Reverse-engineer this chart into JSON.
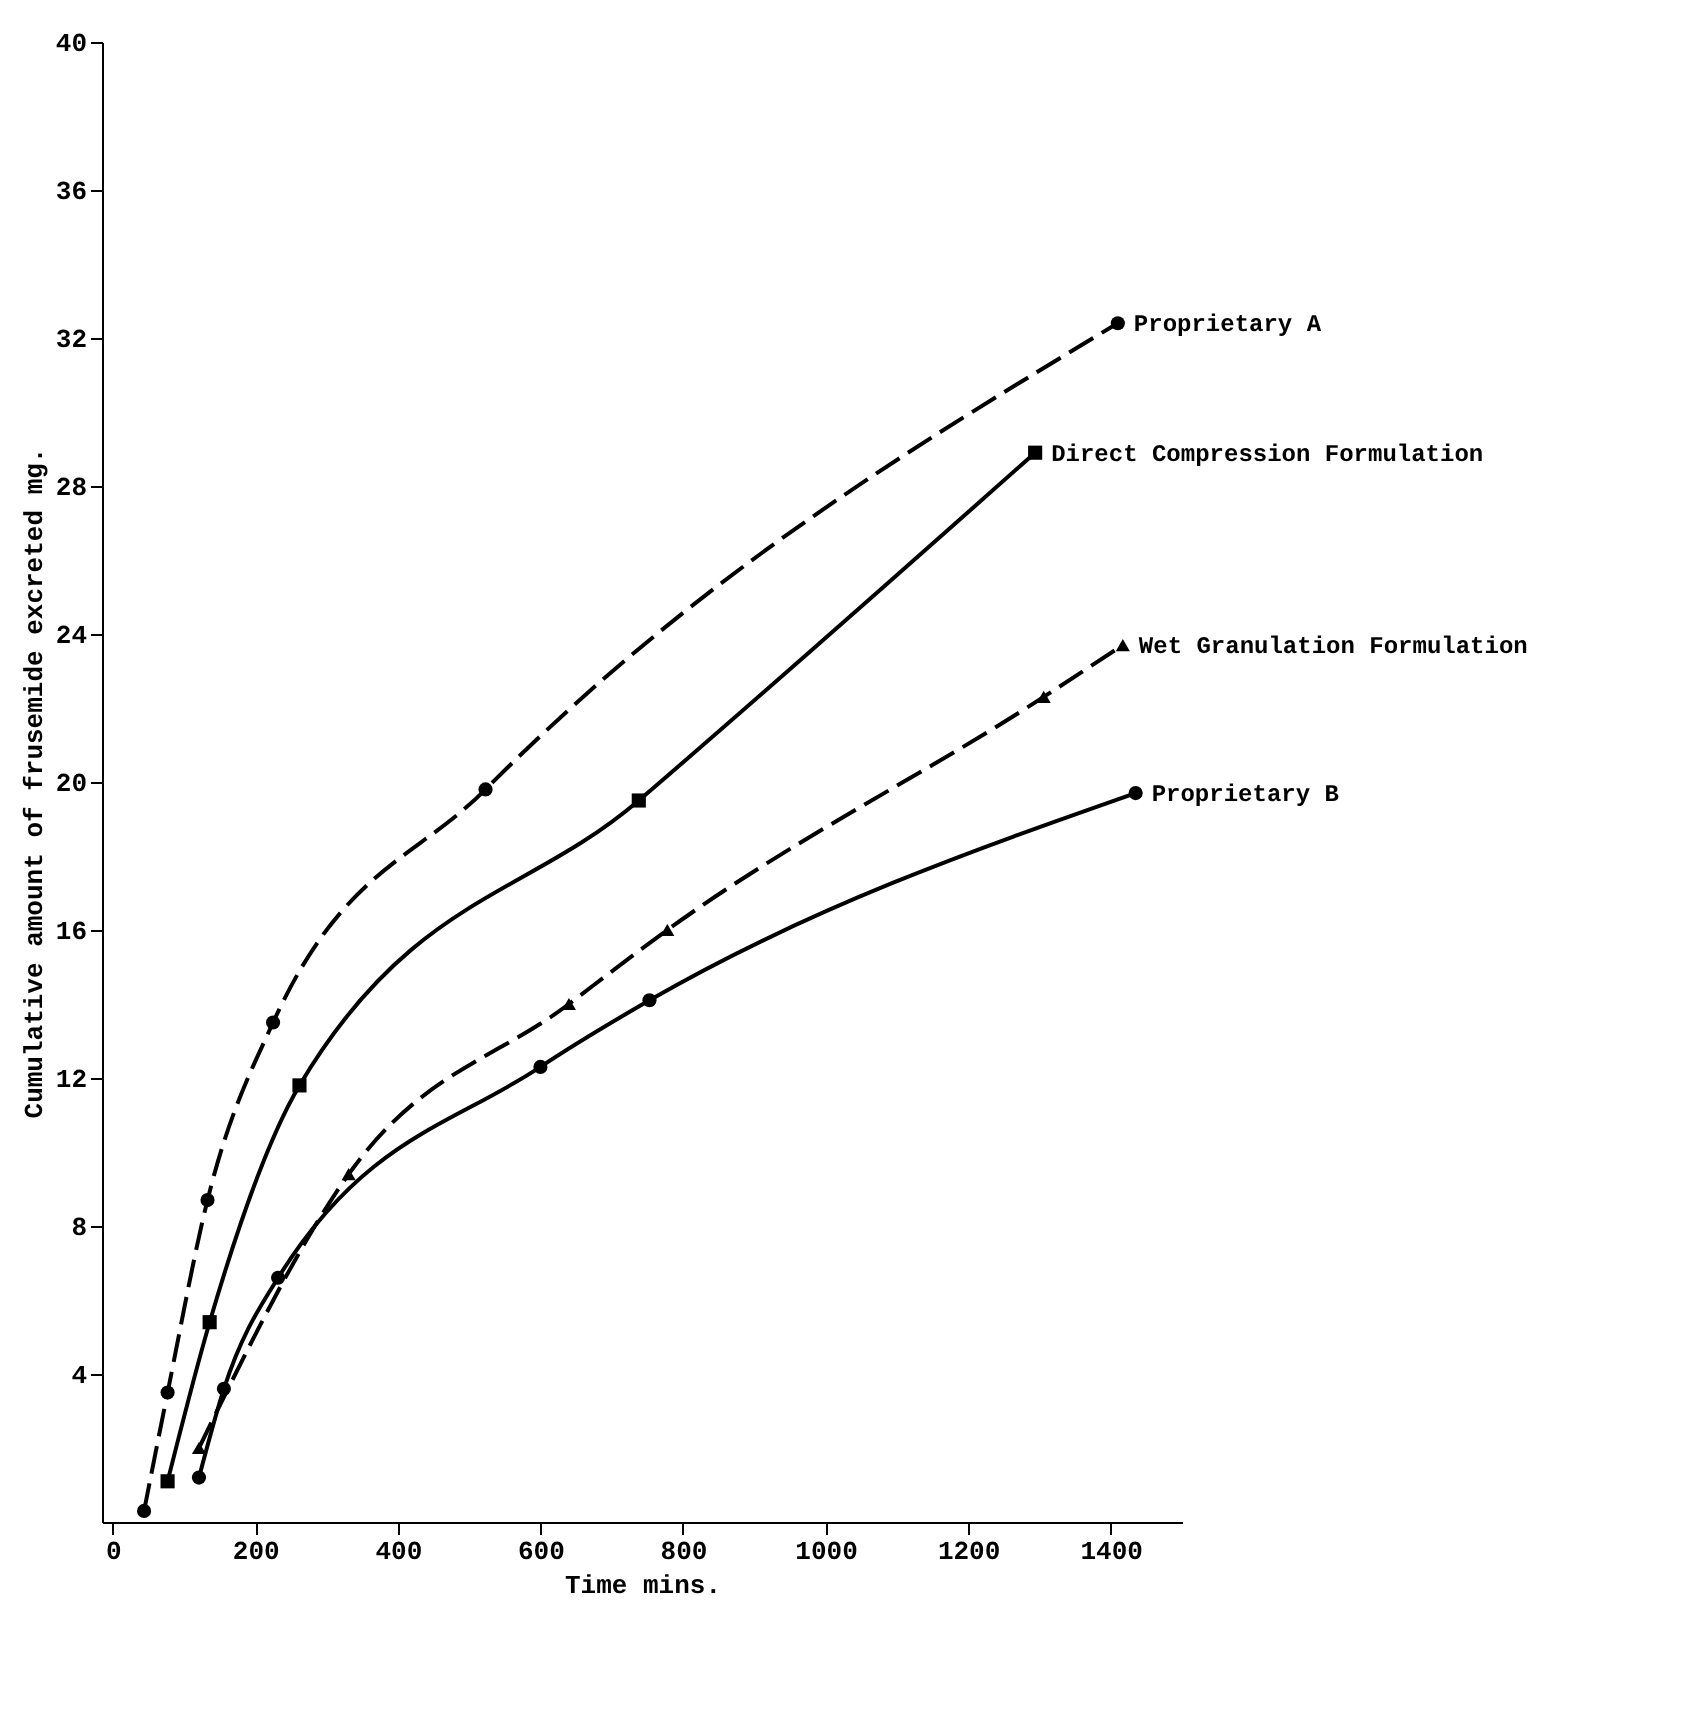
{
  "chart_data": {
    "type": "line",
    "xlabel": "Time  mins.",
    "ylabel": "Cumulative amount of frusemide excreted  mg.",
    "xlim": [
      -15,
      1500
    ],
    "ylim": [
      0,
      40
    ],
    "xticks": [
      0,
      200,
      400,
      600,
      800,
      1000,
      1200,
      1400
    ],
    "yticks": [
      4,
      8,
      12,
      16,
      20,
      24,
      28,
      32,
      36,
      40
    ],
    "grid": false,
    "series": [
      {
        "name": "Proprietary A",
        "color": "#000000",
        "marker": "circle",
        "line_style": "dashed",
        "x": [
          44,
          77,
          133,
          225,
          523,
          1410
        ],
        "values": [
          0.3,
          3.5,
          8.7,
          13.5,
          19.8,
          32.4
        ]
      },
      {
        "name": "Direct Compression Formulation",
        "color": "#000000",
        "marker": "square",
        "line_style": "solid",
        "x": [
          77,
          136,
          262,
          738,
          1294
        ],
        "values": [
          1.1,
          5.4,
          11.8,
          19.5,
          28.9
        ]
      },
      {
        "name": "Wet Granulation Formulation",
        "color": "#000000",
        "marker": "triangle",
        "line_style": "dashed",
        "x": [
          121,
          331,
          640,
          778,
          1306,
          1417
        ],
        "values": [
          2.0,
          9.4,
          14.0,
          16.0,
          22.3,
          23.7
        ]
      },
      {
        "name": "Proprietary B",
        "color": "#000000",
        "marker": "circle",
        "line_style": "solid",
        "x": [
          121,
          156,
          232,
          600,
          753,
          1435
        ],
        "values": [
          1.2,
          3.6,
          6.6,
          12.3,
          14.1,
          19.7
        ]
      }
    ]
  }
}
